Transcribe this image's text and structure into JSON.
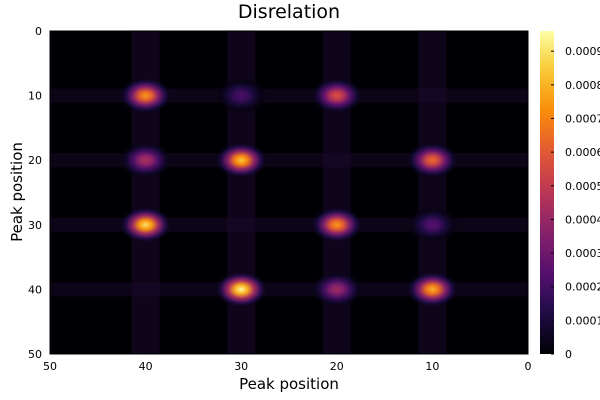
{
  "chart_data": {
    "type": "heatmap",
    "title": "Disrelation",
    "xlabel": "Peak position",
    "ylabel": "Peak position",
    "x_axis": {
      "range": [
        50,
        0
      ],
      "reversed": true,
      "ticks": [
        "50",
        "40",
        "30",
        "20",
        "10",
        "0"
      ]
    },
    "y_axis": {
      "range": [
        0,
        50
      ],
      "reversed": true,
      "ticks": [
        "0",
        "10",
        "20",
        "30",
        "40",
        "50"
      ]
    },
    "colorbar": {
      "range": [
        0,
        0.00096
      ],
      "ticks": [
        "0",
        "0.0001",
        "0.0002",
        "0.0003",
        "0.0004",
        "0.0005",
        "0.0006",
        "0.0007",
        "0.0008",
        "0.0009"
      ],
      "colormap": "inferno"
    },
    "blobs": [
      {
        "x": 40,
        "y": 10,
        "value": 0.00075
      },
      {
        "x": 30,
        "y": 10,
        "value": 0.00022
      },
      {
        "x": 20,
        "y": 10,
        "value": 0.00058
      },
      {
        "x": 40,
        "y": 20,
        "value": 0.00045
      },
      {
        "x": 30,
        "y": 20,
        "value": 0.00085
      },
      {
        "x": 10,
        "y": 20,
        "value": 0.00065
      },
      {
        "x": 40,
        "y": 30,
        "value": 0.0009
      },
      {
        "x": 20,
        "y": 30,
        "value": 0.00075
      },
      {
        "x": 10,
        "y": 30,
        "value": 0.00025
      },
      {
        "x": 30,
        "y": 40,
        "value": 0.00096
      },
      {
        "x": 20,
        "y": 40,
        "value": 0.00042
      },
      {
        "x": 10,
        "y": 40,
        "value": 0.0008
      }
    ],
    "grid": false
  }
}
